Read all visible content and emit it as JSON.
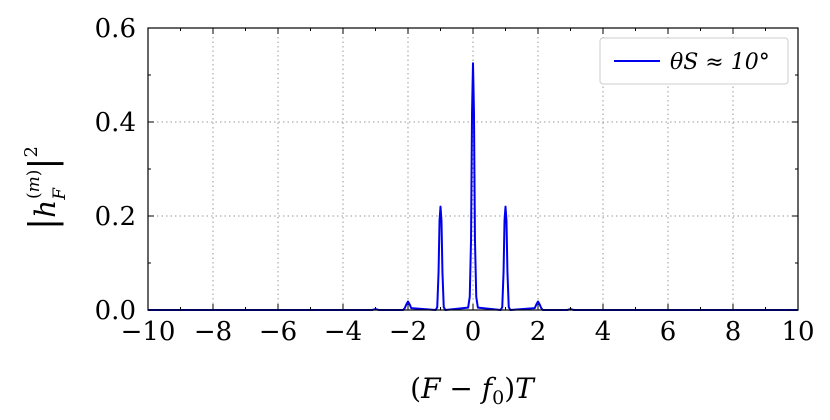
{
  "chart_data": {
    "type": "line",
    "xlabel": "(F − f0)T",
    "ylabel": "|h_F^(m)|^2",
    "xlim": [
      -10,
      10
    ],
    "ylim": [
      0,
      0.6
    ],
    "x_ticks": [
      -10,
      -8,
      -6,
      -4,
      -2,
      0,
      2,
      4,
      6,
      8,
      10
    ],
    "x_tick_labels": [
      "−10",
      "−8",
      "−6",
      "−4",
      "−2",
      "0",
      "2",
      "4",
      "6",
      "8",
      "10"
    ],
    "y_ticks": [
      0.0,
      0.2,
      0.4,
      0.6
    ],
    "y_tick_labels": [
      "0.0",
      "0.2",
      "0.4",
      "0.6"
    ],
    "grid": true,
    "legend_position": "top-right",
    "series": [
      {
        "name": "θS ≈ 10°",
        "color": "#0000ee",
        "x": [
          -10,
          -3.1,
          -3.0,
          -2.9,
          -2.15,
          -2.1,
          -2.05,
          -2.0,
          -1.95,
          -1.9,
          -1.15,
          -1.1,
          -1.06,
          -1.03,
          -1.0,
          -0.97,
          -0.94,
          -0.9,
          -0.85,
          -0.15,
          -0.1,
          -0.06,
          -0.03,
          0.0,
          0.03,
          0.06,
          0.1,
          0.15,
          0.85,
          0.9,
          0.94,
          0.97,
          1.0,
          1.03,
          1.06,
          1.1,
          1.15,
          1.9,
          1.95,
          2.0,
          2.05,
          2.1,
          2.15,
          2.9,
          3.0,
          3.1,
          10
        ],
        "y": [
          0.0,
          0.0,
          0.002,
          0.0,
          0.0,
          0.004,
          0.012,
          0.018,
          0.012,
          0.004,
          0.0,
          0.006,
          0.08,
          0.19,
          0.22,
          0.19,
          0.08,
          0.006,
          0.0,
          0.005,
          0.028,
          0.15,
          0.42,
          0.525,
          0.42,
          0.15,
          0.028,
          0.005,
          0.0,
          0.006,
          0.08,
          0.19,
          0.22,
          0.19,
          0.08,
          0.006,
          0.0,
          0.004,
          0.012,
          0.018,
          0.012,
          0.004,
          0.0,
          0.0,
          0.002,
          0.0,
          0.0
        ]
      }
    ]
  },
  "legend": {
    "label": "θS ≈ 10°",
    "color": "#0000ee"
  },
  "colors": {
    "line": "#0000ee",
    "grid": "#9a9a9a",
    "axes": "#000000"
  }
}
